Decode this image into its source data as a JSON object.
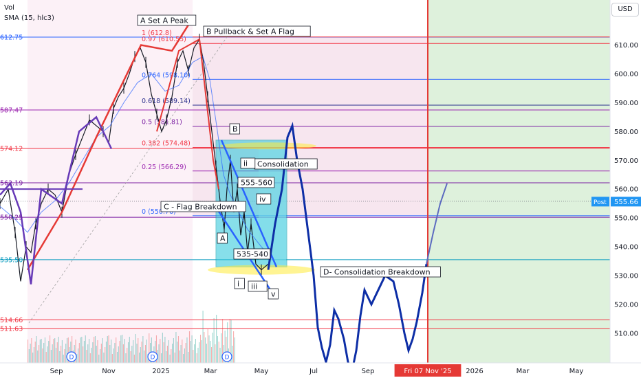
{
  "indicators": {
    "vol": "Vol",
    "sma": "SMA (15, hlc3)"
  },
  "currency_button": "USD",
  "chart_data": {
    "type": "line",
    "title": "",
    "ylim": [
      500,
      622
    ],
    "price_axis_ticks": [
      "610.00",
      "600.00",
      "590.00",
      "580.00",
      "570.00",
      "560.00",
      "550.00",
      "540.00",
      "530.00",
      "520.00",
      "510.00"
    ],
    "time_axis_labels": [
      {
        "label": "Sep",
        "highlight": false
      },
      {
        "label": "Nov",
        "highlight": false
      },
      {
        "label": "2025",
        "highlight": false
      },
      {
        "label": "Mar",
        "highlight": false
      },
      {
        "label": "May",
        "highlight": false
      },
      {
        "label": "Jul",
        "highlight": false
      },
      {
        "label": "Sep",
        "highlight": false
      },
      {
        "label": "Fri 07 Nov '25",
        "highlight": true
      },
      {
        "label": "2026",
        "highlight": false
      },
      {
        "label": "Mar",
        "highlight": false
      },
      {
        "label": "May",
        "highlight": false
      }
    ],
    "left_price_labels": [
      {
        "value": 612.75,
        "label": "612.75",
        "color": "#2962ff"
      },
      {
        "value": 587.47,
        "label": "587.47",
        "color": "#9c27b0"
      },
      {
        "value": 574.12,
        "label": "574.12",
        "color": "#f23645"
      },
      {
        "value": 562.19,
        "label": "562.19",
        "color": "#7b1fa2"
      },
      {
        "value": 550.25,
        "label": "550.25",
        "color": "#7b1fa2"
      },
      {
        "value": 535.5,
        "label": "535.50",
        "color": "#089bbf"
      },
      {
        "value": 514.66,
        "label": "514.66",
        "color": "#f23645"
      },
      {
        "value": 511.63,
        "label": "511.63",
        "color": "#f23645"
      }
    ],
    "fib_levels": [
      {
        "ratio": "1",
        "value": 612.8,
        "label": "1 (612.8)",
        "color": "#f23645"
      },
      {
        "ratio": "0.97",
        "value": 610.55,
        "label": "0.97 (610.55)",
        "color": "#f23645"
      },
      {
        "ratio": "0.764",
        "value": 598.1,
        "label": "0.764 (598.10)",
        "color": "#2962ff"
      },
      {
        "ratio": "0.618",
        "value": 589.14,
        "label": "0.618 (589.14)",
        "color": "#2a2e8c"
      },
      {
        "ratio": "0.5",
        "value": 581.81,
        "label": "0.5 (581.81)",
        "color": "#7b1fa2"
      },
      {
        "ratio": "0.382",
        "value": 574.48,
        "label": "0.382 (574.48)",
        "color": "#f23645"
      },
      {
        "ratio": "0.25",
        "value": 566.29,
        "label": "0.25 (566.29)",
        "color": "#9c27b0"
      },
      {
        "ratio": "0",
        "value": 550.76,
        "label": "0 (550.76)",
        "color": "#2962ff"
      }
    ],
    "current_price": {
      "value": 555.8,
      "label": "555.80",
      "color": "#131722"
    },
    "post_price": {
      "tag": "Post",
      "value": 555.66,
      "label": "555.66",
      "color": "#2196f3"
    },
    "annotations": [
      "A Set A Peak",
      "B Pullback & Set A Flag",
      "B",
      "Consolidation",
      "C - Flag Breakdown",
      "555-560",
      "535-540",
      "A",
      "ii",
      "iv",
      "i",
      "iii",
      "v",
      "D- Consolidation Breakdown"
    ],
    "dividend_marker": "D",
    "price_path": [
      [
        0,
        555
      ],
      [
        12,
        560
      ],
      [
        22,
        545
      ],
      [
        30,
        528
      ],
      [
        38,
        540
      ],
      [
        45,
        538
      ],
      [
        52,
        548
      ],
      [
        60,
        555
      ],
      [
        70,
        560
      ],
      [
        80,
        558
      ],
      [
        90,
        552
      ],
      [
        100,
        565
      ],
      [
        110,
        572
      ],
      [
        120,
        578
      ],
      [
        130,
        584
      ],
      [
        140,
        582
      ],
      [
        150,
        580
      ],
      [
        158,
        576
      ],
      [
        165,
        588
      ],
      [
        172,
        592
      ],
      [
        180,
        595
      ],
      [
        188,
        600
      ],
      [
        196,
        606
      ],
      [
        204,
        609
      ],
      [
        212,
        604
      ],
      [
        220,
        593
      ],
      [
        228,
        586
      ],
      [
        235,
        580
      ],
      [
        242,
        584
      ],
      [
        250,
        592
      ],
      [
        258,
        604
      ],
      [
        266,
        608
      ],
      [
        274,
        601
      ],
      [
        282,
        609
      ],
      [
        290,
        612
      ],
      [
        296,
        604
      ],
      [
        302,
        592
      ],
      [
        308,
        580
      ],
      [
        314,
        568
      ],
      [
        320,
        556
      ],
      [
        326,
        546
      ],
      [
        330,
        560
      ],
      [
        335,
        570
      ],
      [
        340,
        552
      ],
      [
        345,
        560
      ],
      [
        350,
        544
      ],
      [
        355,
        552
      ],
      [
        360,
        538
      ],
      [
        365,
        548
      ],
      [
        372,
        534
      ],
      [
        380,
        532
      ],
      [
        390,
        534
      ]
    ],
    "sma_path": [
      [
        0,
        554
      ],
      [
        20,
        550
      ],
      [
        40,
        545
      ],
      [
        60,
        552
      ],
      [
        80,
        556
      ],
      [
        100,
        562
      ],
      [
        120,
        570
      ],
      [
        140,
        578
      ],
      [
        160,
        582
      ],
      [
        180,
        590
      ],
      [
        200,
        597
      ],
      [
        220,
        600
      ],
      [
        240,
        594
      ],
      [
        260,
        596
      ],
      [
        280,
        604
      ],
      [
        295,
        606
      ],
      [
        305,
        598
      ],
      [
        315,
        582
      ],
      [
        325,
        565
      ],
      [
        335,
        558
      ],
      [
        345,
        553
      ],
      [
        360,
        546
      ],
      [
        380,
        540
      ],
      [
        395,
        536
      ]
    ],
    "projection_path": [
      [
        390,
        532
      ],
      [
        400,
        548
      ],
      [
        410,
        560
      ],
      [
        418,
        578
      ],
      [
        425,
        582
      ],
      [
        432,
        570
      ],
      [
        440,
        560
      ],
      [
        448,
        545
      ],
      [
        456,
        530
      ],
      [
        462,
        512
      ],
      [
        468,
        505
      ],
      [
        474,
        500
      ],
      [
        480,
        506
      ],
      [
        486,
        518
      ],
      [
        492,
        515
      ],
      [
        500,
        508
      ],
      [
        506,
        500
      ],
      [
        512,
        497
      ],
      [
        518,
        504
      ],
      [
        524,
        516
      ],
      [
        530,
        525
      ],
      [
        540,
        520
      ],
      [
        550,
        525
      ],
      [
        560,
        530
      ],
      [
        572,
        528
      ],
      [
        580,
        520
      ],
      [
        588,
        510
      ],
      [
        594,
        504
      ],
      [
        600,
        508
      ],
      [
        606,
        514
      ],
      [
        614,
        524
      ],
      [
        620,
        534
      ]
    ],
    "projection2_path": [
      [
        620,
        534
      ],
      [
        630,
        545
      ],
      [
        640,
        555
      ],
      [
        650,
        562
      ]
    ],
    "volume_color_up": "#26a69a",
    "volume_color_down": "#ef5350"
  }
}
